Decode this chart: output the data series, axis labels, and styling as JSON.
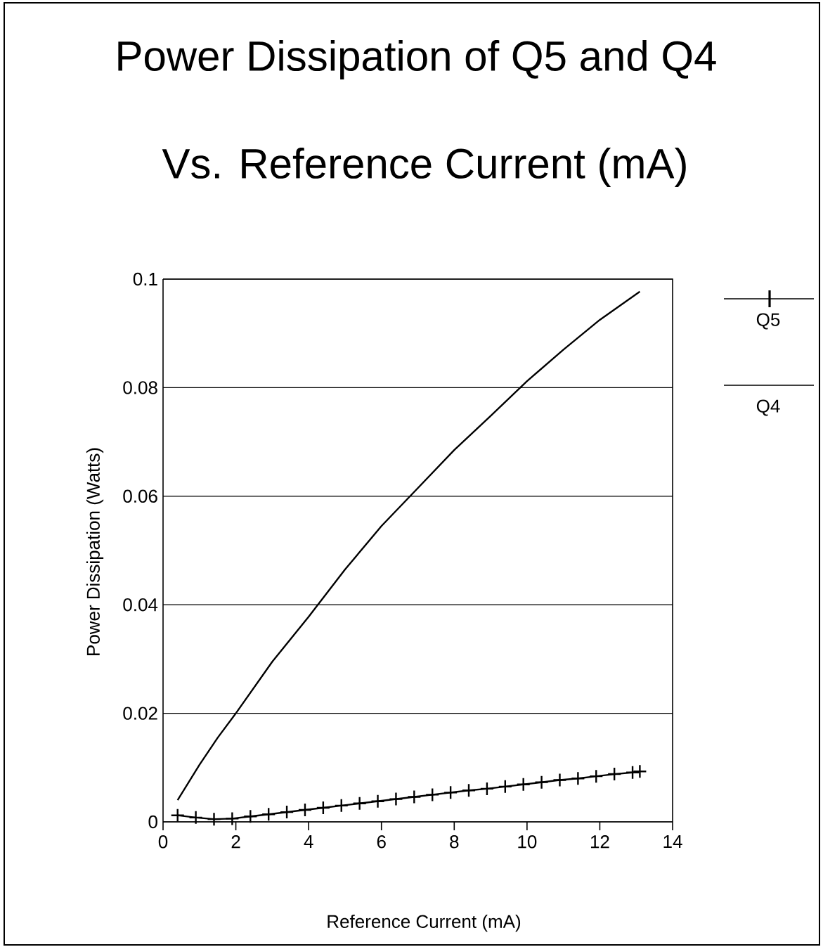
{
  "chart_data": {
    "type": "line",
    "title": "Power Dissipation of Q5 and Q4",
    "subtitle": "Vs. Reference Current (mA)",
    "xlabel": "Reference Current (mA)",
    "ylabel": "Power Dissipation (Watts)",
    "xlim": [
      0,
      14
    ],
    "xticks": [
      0,
      2,
      4,
      6,
      8,
      10,
      12,
      14
    ],
    "ylim": [
      0,
      0.1
    ],
    "yticks": [
      0,
      0.02,
      0.04,
      0.06,
      0.08,
      0.1
    ],
    "grid": "y",
    "legend": "right",
    "series": [
      {
        "name": "Q5",
        "color": "#000000",
        "marker": "cross",
        "x": [
          0.4,
          0.9,
          1.4,
          1.9,
          2.4,
          2.9,
          3.4,
          3.9,
          4.4,
          4.9,
          5.4,
          5.9,
          6.4,
          6.9,
          7.4,
          7.9,
          8.4,
          8.9,
          9.4,
          9.9,
          10.4,
          10.9,
          11.4,
          11.9,
          12.4,
          12.9,
          13.1
        ],
        "values": [
          0.0012,
          0.0008,
          0.0005,
          0.0006,
          0.001,
          0.0014,
          0.0018,
          0.0022,
          0.0026,
          0.003,
          0.0034,
          0.0038,
          0.0042,
          0.0046,
          0.005,
          0.0054,
          0.0058,
          0.0061,
          0.0065,
          0.0069,
          0.0073,
          0.0077,
          0.008,
          0.0084,
          0.0088,
          0.0091,
          0.0093
        ]
      },
      {
        "name": "Q4",
        "color": "#000000",
        "marker": "none",
        "x": [
          0.4,
          1,
          1.5,
          2,
          3,
          4,
          5,
          6,
          7,
          8,
          9,
          10,
          11,
          12,
          13.1
        ],
        "values": [
          0.004,
          0.0105,
          0.0155,
          0.02,
          0.0295,
          0.0378,
          0.0465,
          0.0545,
          0.0615,
          0.0685,
          0.0748,
          0.0812,
          0.087,
          0.0925,
          0.0977
        ]
      }
    ]
  }
}
